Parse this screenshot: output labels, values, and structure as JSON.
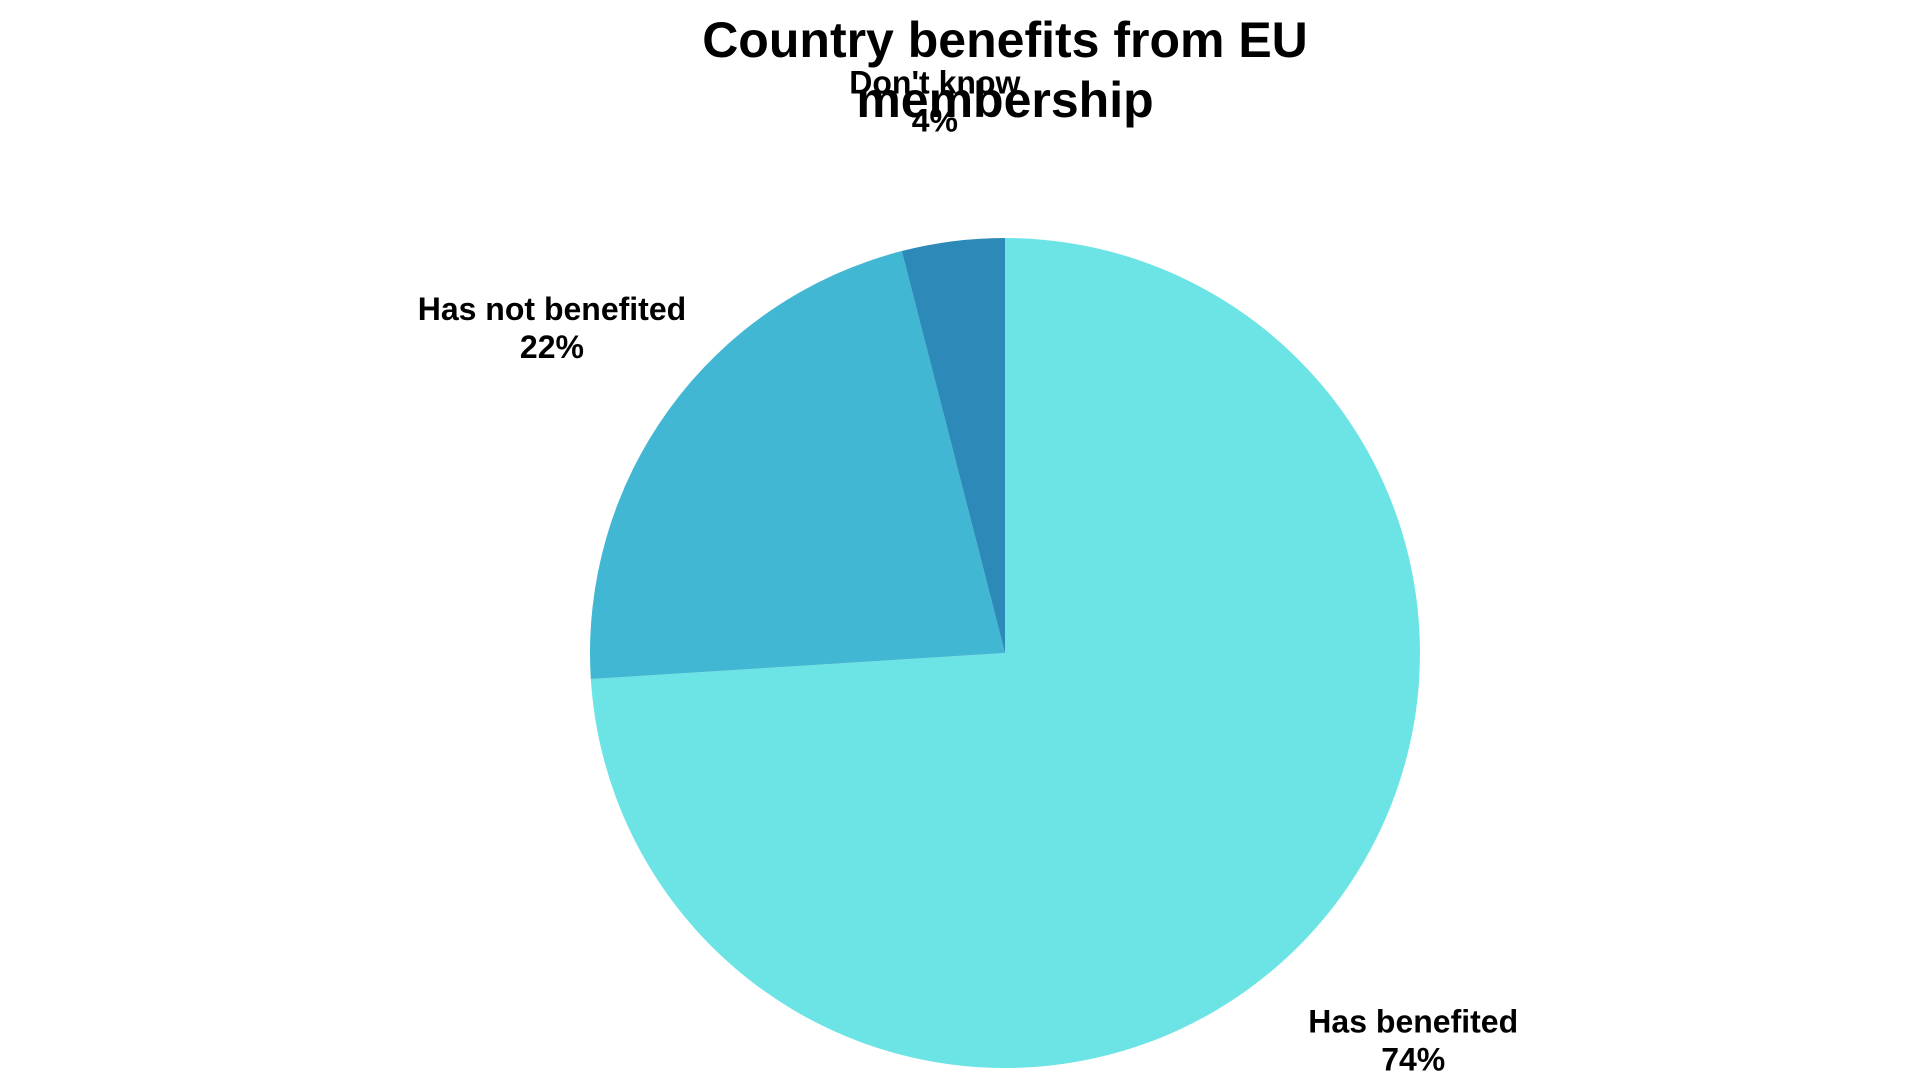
{
  "chart_data": {
    "type": "pie",
    "title_lines": [
      "Country benefits from EU",
      "membership"
    ],
    "slices": [
      {
        "label": "Has benefited",
        "value": 74,
        "value_label": "74%",
        "color": "#6ce4e6"
      },
      {
        "label": "Has not benefited",
        "value": 22,
        "value_label": "22%",
        "color": "#42b7d4"
      },
      {
        "label": "Don't know",
        "value": 4,
        "value_label": "4%",
        "color": "#2d8ab8"
      }
    ],
    "start": "12 o'clock",
    "direction": "clockwise"
  }
}
